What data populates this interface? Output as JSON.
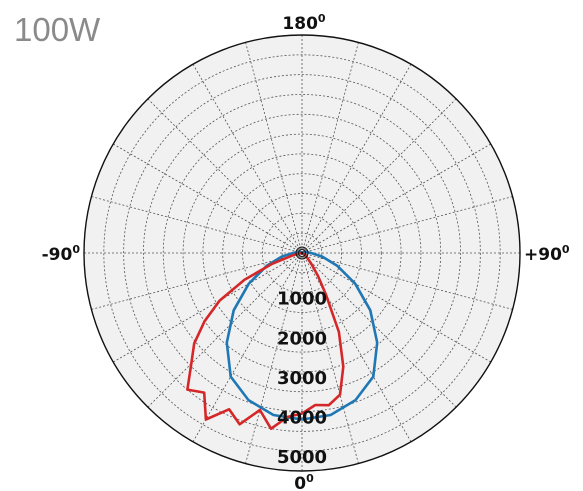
{
  "chart_data": {
    "type": "polar-line",
    "title": "100W",
    "angle_labels": [
      {
        "angle_deg": 180,
        "text": "180",
        "sup": "0"
      },
      {
        "angle_deg": -90,
        "text": "-90",
        "sup": "0"
      },
      {
        "angle_deg": 90,
        "text": "+90",
        "sup": "0"
      },
      {
        "angle_deg": 0,
        "text": "0",
        "sup": "0"
      }
    ],
    "radial_ticks": [
      "1000",
      "2000",
      "3000",
      "4000",
      "5000"
    ],
    "radial_max": 5500,
    "radial_rings": [
      500,
      1000,
      1500,
      2000,
      2500,
      3000,
      3500,
      4000,
      4500,
      5000,
      5500
    ],
    "angular_grid_step_deg": 15,
    "grid": true,
    "series": [
      {
        "color": "#1f77b4",
        "points": [
          [
            0,
            4200
          ],
          [
            10,
            4150
          ],
          [
            20,
            3950
          ],
          [
            30,
            3600
          ],
          [
            40,
            2950
          ],
          [
            50,
            2250
          ],
          [
            60,
            1550
          ],
          [
            70,
            950
          ],
          [
            80,
            520
          ],
          [
            90,
            230
          ],
          [
            120,
            60
          ],
          [
            180,
            0
          ],
          [
            240,
            60
          ],
          [
            270,
            230
          ],
          [
            280,
            520
          ],
          [
            290,
            950
          ],
          [
            300,
            1550
          ],
          [
            310,
            2250
          ],
          [
            320,
            2950
          ],
          [
            330,
            3600
          ],
          [
            340,
            3950
          ],
          [
            350,
            4150
          ],
          [
            360,
            4200
          ]
        ]
      },
      {
        "color": "#d62728",
        "points": [
          [
            0,
            4050
          ],
          [
            5,
            3850
          ],
          [
            10,
            3900
          ],
          [
            15,
            3700
          ],
          [
            20,
            3050
          ],
          [
            25,
            2200
          ],
          [
            30,
            1200
          ],
          [
            35,
            700
          ],
          [
            40,
            380
          ],
          [
            50,
            150
          ],
          [
            60,
            60
          ],
          [
            90,
            20
          ],
          [
            180,
            0
          ],
          [
            270,
            30
          ],
          [
            280,
            100
          ],
          [
            285,
            280
          ],
          [
            290,
            800
          ],
          [
            295,
            1600
          ],
          [
            300,
            2400
          ],
          [
            305,
            3000
          ],
          [
            310,
            3550
          ],
          [
            315,
            3950
          ],
          [
            320,
            4500
          ],
          [
            325,
            4300
          ],
          [
            330,
            4850
          ],
          [
            335,
            4350
          ],
          [
            340,
            4600
          ],
          [
            345,
            4100
          ],
          [
            350,
            4500
          ],
          [
            355,
            4150
          ],
          [
            360,
            4050
          ]
        ]
      }
    ]
  }
}
